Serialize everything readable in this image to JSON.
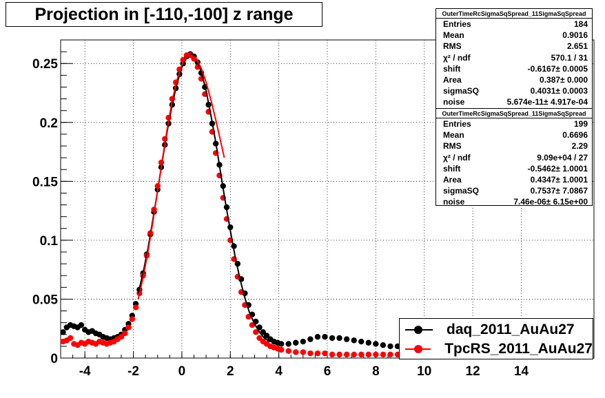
{
  "title": "Projection in [-110,-100] z range",
  "stats_boxes": [
    {
      "header": "OuterTimeRcSigmaSqSpread_11SigmaSqSpread",
      "rows": [
        {
          "label": "Entries",
          "value": "184"
        },
        {
          "label": "Mean",
          "value": "0.9016"
        },
        {
          "label": "RMS",
          "value": "2.651"
        },
        {
          "label": "χ² / ndf",
          "value": "570.1 / 31"
        },
        {
          "label": "shift",
          "value": "-0.6167± 0.0005"
        },
        {
          "label": "Area",
          "value": "0.387± 0.000"
        },
        {
          "label": "sigmaSQ",
          "value": "0.4031± 0.0003"
        },
        {
          "label": "noise",
          "value": "5.674e-11± 4.917e-04"
        }
      ]
    },
    {
      "header": "OuterTimeRcSigmaSqSpread_11SigmaSqSpread",
      "rows": [
        {
          "label": "Entries",
          "value": "199"
        },
        {
          "label": "Mean",
          "value": "0.6696"
        },
        {
          "label": "RMS",
          "value": "2.29"
        },
        {
          "label": "χ² / ndf",
          "value": "9.09e+04 / 27"
        },
        {
          "label": "shift",
          "value": "-0.5462± 1.0001"
        },
        {
          "label": "Area",
          "value": "0.4347± 1.0001"
        },
        {
          "label": "sigmaSQ",
          "value": "0.7537± 7.0867"
        },
        {
          "label": "noise",
          "value": "7.46e-06± 6.15e+00"
        }
      ]
    }
  ],
  "legend": [
    {
      "label": "daq_2011_AuAu27",
      "color": "#000000"
    },
    {
      "label": "TpcRS_2011_AuAu27",
      "color": "#ff0000"
    }
  ],
  "colors": {
    "series_black": "#000000",
    "series_red": "#ff0000",
    "grid": "#000000"
  },
  "chart_data": {
    "type": "scatter",
    "title": "Projection in [-110,-100] z range",
    "xlim": [
      -5,
      17
    ],
    "ylim": [
      0,
      0.27
    ],
    "grid": true,
    "legend_position": "bottom-right",
    "x_ticks": [
      -4,
      -2,
      0,
      2,
      4,
      6,
      8,
      10,
      12,
      14
    ],
    "x_tick_labels": [
      "-4",
      "-2",
      "0",
      "2",
      "4",
      "6",
      "8",
      "10",
      "12",
      "14"
    ],
    "y_ticks": [
      0,
      0.05,
      0.1,
      0.15,
      0.2,
      0.25
    ],
    "y_tick_labels": [
      "0",
      "0.05",
      "0.1",
      "0.15",
      "0.2",
      "0.25"
    ],
    "series": [
      {
        "name": "daq_2011_AuAu27",
        "color": "#000000",
        "points": [
          [
            -4.9,
            0.022
          ],
          [
            -4.75,
            0.026
          ],
          [
            -4.6,
            0.028
          ],
          [
            -4.45,
            0.027
          ],
          [
            -4.3,
            0.026
          ],
          [
            -4.15,
            0.028
          ],
          [
            -4.0,
            0.024
          ],
          [
            -3.85,
            0.022
          ],
          [
            -3.7,
            0.023
          ],
          [
            -3.55,
            0.021
          ],
          [
            -3.4,
            0.02
          ],
          [
            -3.25,
            0.018
          ],
          [
            -3.1,
            0.017
          ],
          [
            -2.95,
            0.016
          ],
          [
            -2.8,
            0.017
          ],
          [
            -2.65,
            0.018
          ],
          [
            -2.5,
            0.02
          ],
          [
            -2.35,
            0.024
          ],
          [
            -2.2,
            0.029
          ],
          [
            -2.05,
            0.036
          ],
          [
            -1.9,
            0.046
          ],
          [
            -1.75,
            0.058
          ],
          [
            -1.6,
            0.072
          ],
          [
            -1.45,
            0.088
          ],
          [
            -1.3,
            0.105
          ],
          [
            -1.15,
            0.124
          ],
          [
            -1.0,
            0.143
          ],
          [
            -0.85,
            0.162
          ],
          [
            -0.7,
            0.181
          ],
          [
            -0.55,
            0.199
          ],
          [
            -0.4,
            0.215
          ],
          [
            -0.25,
            0.229
          ],
          [
            -0.1,
            0.241
          ],
          [
            0.05,
            0.25
          ],
          [
            0.2,
            0.256
          ],
          [
            0.35,
            0.258
          ],
          [
            0.5,
            0.256
          ],
          [
            0.65,
            0.251
          ],
          [
            0.8,
            0.242
          ],
          [
            0.95,
            0.23
          ],
          [
            1.1,
            0.215
          ],
          [
            1.25,
            0.199
          ],
          [
            1.4,
            0.182
          ],
          [
            1.55,
            0.164
          ],
          [
            1.7,
            0.146
          ],
          [
            1.85,
            0.128
          ],
          [
            2.0,
            0.111
          ],
          [
            2.15,
            0.095
          ],
          [
            2.3,
            0.08
          ],
          [
            2.45,
            0.067
          ],
          [
            2.6,
            0.055
          ],
          [
            2.75,
            0.045
          ],
          [
            2.9,
            0.037
          ],
          [
            3.05,
            0.031
          ],
          [
            3.2,
            0.026
          ],
          [
            3.35,
            0.022
          ],
          [
            3.5,
            0.019
          ],
          [
            3.65,
            0.016
          ],
          [
            3.8,
            0.014
          ],
          [
            3.95,
            0.013
          ],
          [
            4.1,
            0.012
          ],
          [
            4.4,
            0.012
          ],
          [
            4.7,
            0.013
          ],
          [
            5.0,
            0.014
          ],
          [
            5.3,
            0.016
          ],
          [
            5.6,
            0.018
          ],
          [
            5.9,
            0.018
          ],
          [
            6.2,
            0.017
          ],
          [
            6.5,
            0.017
          ],
          [
            6.8,
            0.016
          ],
          [
            7.1,
            0.015
          ],
          [
            7.4,
            0.014
          ],
          [
            7.7,
            0.013
          ],
          [
            8.0,
            0.012
          ],
          [
            8.3,
            0.011
          ],
          [
            8.6,
            0.01
          ],
          [
            8.9,
            0.01
          ],
          [
            9.2,
            0.009
          ],
          [
            9.5,
            0.008
          ],
          [
            9.8,
            0.007
          ]
        ],
        "fit": [
          [
            -1.8,
            0.055
          ],
          [
            -1.6,
            0.072
          ],
          [
            -1.4,
            0.093
          ],
          [
            -1.2,
            0.117
          ],
          [
            -1.0,
            0.142
          ],
          [
            -0.8,
            0.168
          ],
          [
            -0.6,
            0.193
          ],
          [
            -0.4,
            0.215
          ],
          [
            -0.2,
            0.233
          ],
          [
            0.0,
            0.247
          ],
          [
            0.2,
            0.255
          ],
          [
            0.4,
            0.258
          ],
          [
            0.6,
            0.254
          ],
          [
            0.8,
            0.243
          ],
          [
            1.0,
            0.227
          ],
          [
            1.2,
            0.206
          ],
          [
            1.4,
            0.183
          ],
          [
            1.6,
            0.157
          ],
          [
            1.8,
            0.132
          ],
          [
            2.0,
            0.108
          ],
          [
            2.2,
            0.086
          ],
          [
            2.4,
            0.067
          ],
          [
            2.6,
            0.051
          ],
          [
            2.8,
            0.038
          ],
          [
            3.0,
            0.029
          ],
          [
            3.2,
            0.022
          ],
          [
            3.4,
            0.017
          ],
          [
            3.6,
            0.014
          ]
        ]
      },
      {
        "name": "TpcRS_2011_AuAu27",
        "color": "#ff0000",
        "points": [
          [
            -4.9,
            0.014
          ],
          [
            -4.75,
            0.015
          ],
          [
            -4.6,
            0.017
          ],
          [
            -4.45,
            0.012
          ],
          [
            -4.3,
            0.011
          ],
          [
            -4.15,
            0.013
          ],
          [
            -4.0,
            0.012
          ],
          [
            -3.85,
            0.014
          ],
          [
            -3.7,
            0.013
          ],
          [
            -3.55,
            0.012
          ],
          [
            -3.4,
            0.014
          ],
          [
            -3.25,
            0.013
          ],
          [
            -3.1,
            0.012
          ],
          [
            -2.95,
            0.013
          ],
          [
            -2.8,
            0.014
          ],
          [
            -2.65,
            0.016
          ],
          [
            -2.5,
            0.018
          ],
          [
            -2.35,
            0.021
          ],
          [
            -2.2,
            0.026
          ],
          [
            -2.05,
            0.033
          ],
          [
            -1.9,
            0.043
          ],
          [
            -1.75,
            0.055
          ],
          [
            -1.6,
            0.07
          ],
          [
            -1.45,
            0.087
          ],
          [
            -1.3,
            0.106
          ],
          [
            -1.15,
            0.126
          ],
          [
            -1.0,
            0.146
          ],
          [
            -0.85,
            0.166
          ],
          [
            -0.7,
            0.186
          ],
          [
            -0.55,
            0.204
          ],
          [
            -0.4,
            0.22
          ],
          [
            -0.25,
            0.234
          ],
          [
            -0.1,
            0.245
          ],
          [
            0.05,
            0.253
          ],
          [
            0.2,
            0.257
          ],
          [
            0.35,
            0.257
          ],
          [
            0.5,
            0.254
          ],
          [
            0.65,
            0.247
          ],
          [
            0.8,
            0.237
          ],
          [
            0.95,
            0.224
          ],
          [
            1.1,
            0.209
          ],
          [
            1.25,
            0.192
          ],
          [
            1.4,
            0.174
          ],
          [
            1.55,
            0.155
          ],
          [
            1.7,
            0.136
          ],
          [
            1.85,
            0.118
          ],
          [
            2.0,
            0.1
          ],
          [
            2.15,
            0.084
          ],
          [
            2.3,
            0.069
          ],
          [
            2.45,
            0.056
          ],
          [
            2.6,
            0.045
          ],
          [
            2.75,
            0.035
          ],
          [
            2.9,
            0.028
          ],
          [
            3.05,
            0.022
          ],
          [
            3.2,
            0.017
          ],
          [
            3.35,
            0.014
          ],
          [
            3.5,
            0.012
          ],
          [
            3.65,
            0.01
          ],
          [
            3.8,
            0.009
          ],
          [
            3.95,
            0.008
          ],
          [
            4.1,
            0.007
          ],
          [
            4.4,
            0.006
          ],
          [
            4.7,
            0.005
          ],
          [
            5.0,
            0.005
          ],
          [
            5.3,
            0.004
          ],
          [
            5.6,
            0.004
          ],
          [
            5.9,
            0.004
          ],
          [
            6.2,
            0.003
          ],
          [
            6.5,
            0.003
          ],
          [
            6.8,
            0.003
          ],
          [
            7.1,
            0.003
          ],
          [
            7.4,
            0.003
          ],
          [
            7.7,
            0.003
          ],
          [
            8.0,
            0.003
          ],
          [
            8.3,
            0.003
          ],
          [
            8.6,
            0.003
          ],
          [
            8.9,
            0.003
          ],
          [
            9.2,
            0.003
          ],
          [
            9.5,
            0.003
          ],
          [
            9.8,
            0.003
          ]
        ],
        "fit": [
          [
            -1.8,
            0.05
          ],
          [
            -1.6,
            0.068
          ],
          [
            -1.4,
            0.09
          ],
          [
            -1.2,
            0.115
          ],
          [
            -1.0,
            0.142
          ],
          [
            -0.8,
            0.169
          ],
          [
            -0.6,
            0.195
          ],
          [
            -0.4,
            0.218
          ],
          [
            -0.2,
            0.236
          ],
          [
            0.0,
            0.249
          ],
          [
            0.2,
            0.256
          ],
          [
            0.4,
            0.257
          ],
          [
            0.6,
            0.254
          ],
          [
            0.8,
            0.246
          ],
          [
            1.0,
            0.234
          ],
          [
            1.2,
            0.219
          ],
          [
            1.4,
            0.202
          ],
          [
            1.6,
            0.184
          ],
          [
            1.75,
            0.17
          ]
        ]
      }
    ]
  }
}
